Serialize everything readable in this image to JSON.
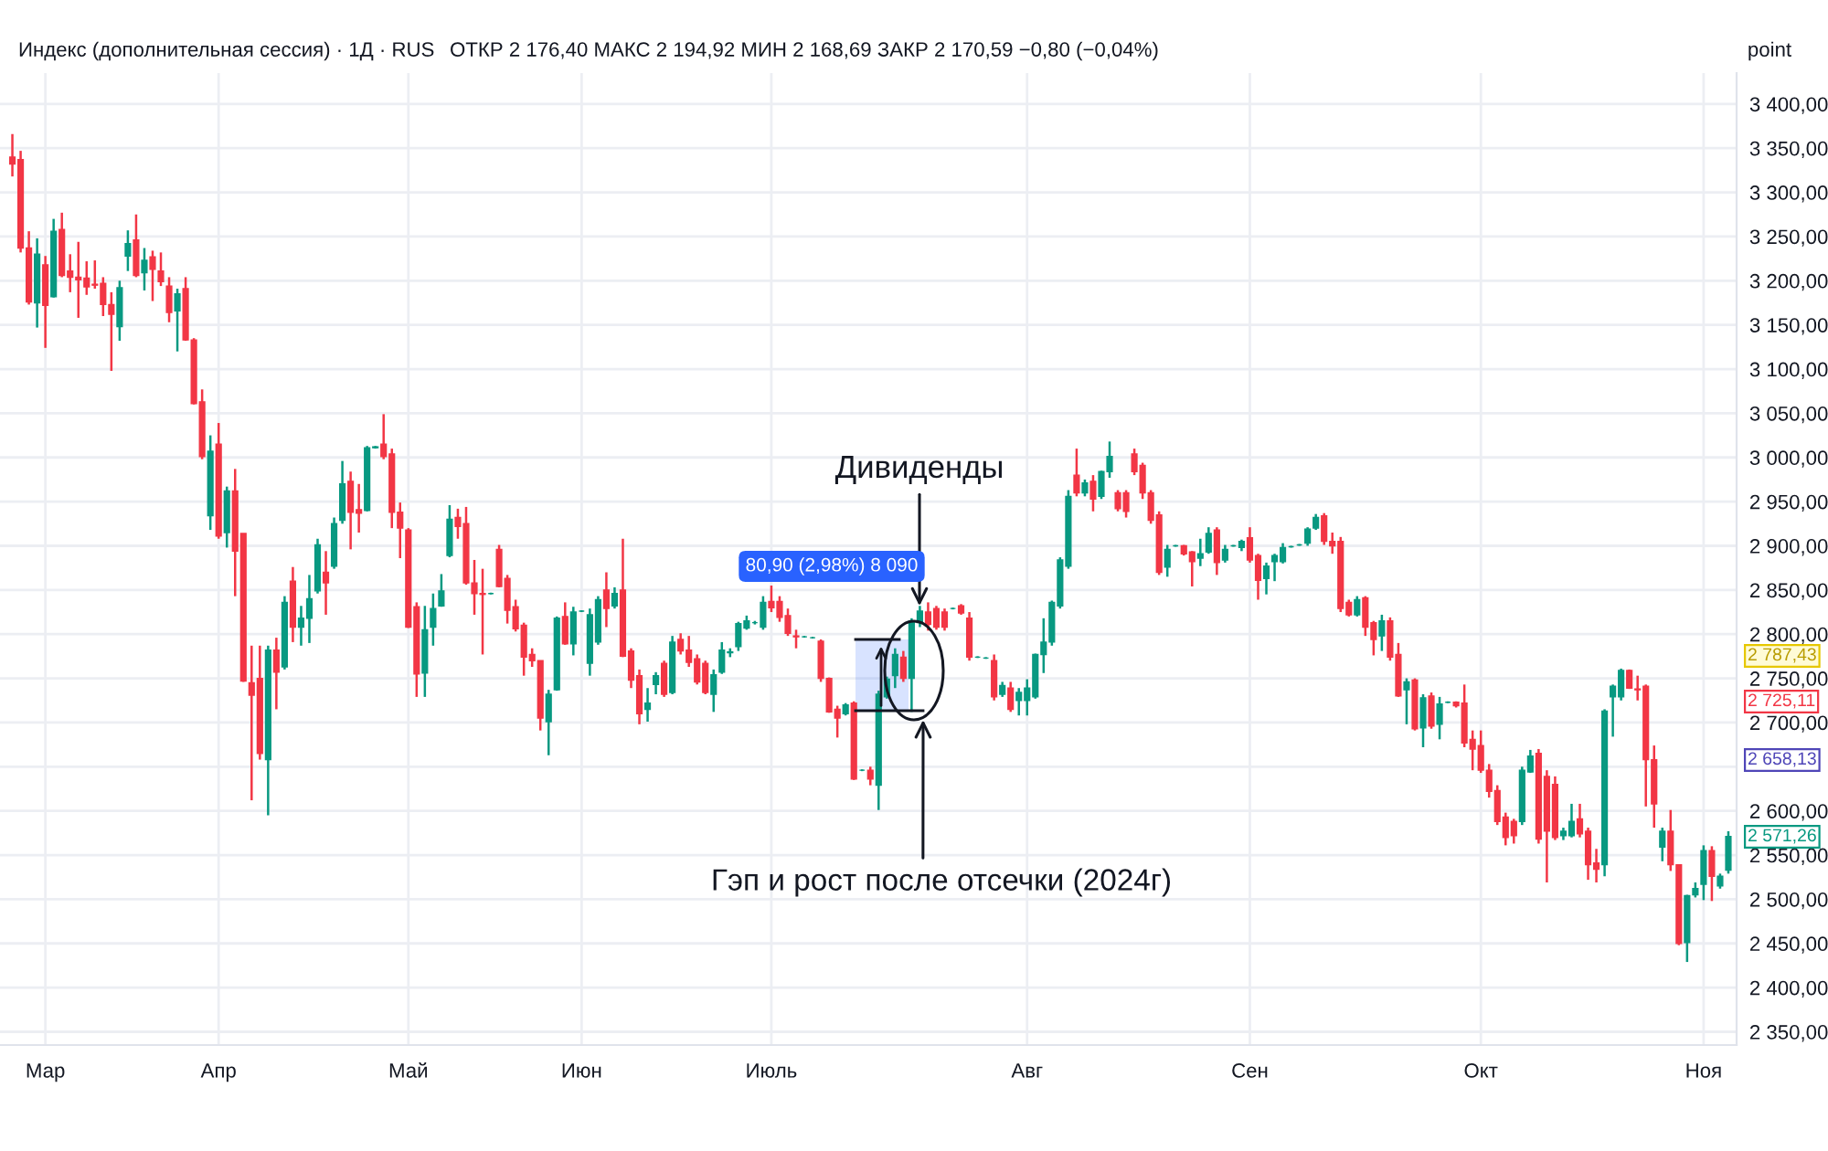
{
  "chart_data": {
    "type": "candlestick",
    "title": "Индекс (дополнительная сессия) · 1Д · RUS",
    "subtitle": "ОТКР 2 176,40 МАКС 2 194,92 МИН 2 168,69 ЗАКР 2 170,59 −0,80 (−0,04%)",
    "ylabel": "point",
    "categories": [
      null,
      null,
      null,
      null,
      "Мар",
      null,
      null,
      null,
      null,
      null,
      null,
      null,
      null,
      null,
      null,
      null,
      null,
      null,
      null,
      null,
      null,
      null,
      null,
      null,
      null,
      "Апр",
      null,
      null,
      null,
      null,
      null,
      null,
      null,
      null,
      null,
      null,
      null,
      null,
      null,
      null,
      null,
      null,
      null,
      null,
      null,
      null,
      null,
      null,
      "Май",
      null,
      null,
      null,
      null,
      null,
      null,
      null,
      null,
      null,
      null,
      null,
      null,
      null,
      null,
      null,
      null,
      null,
      null,
      null,
      null,
      "Июн",
      null,
      null,
      null,
      null,
      null,
      null,
      null,
      null,
      null,
      null,
      null,
      null,
      null,
      null,
      null,
      null,
      null,
      null,
      null,
      null,
      null,
      null,
      "Июль",
      null,
      null,
      null,
      null,
      null,
      null,
      null,
      null,
      null,
      null,
      null,
      null,
      null,
      null,
      null,
      null,
      null,
      null,
      null,
      null,
      null,
      null,
      null,
      null,
      null,
      null,
      null,
      null,
      null,
      null,
      "Авг",
      null,
      null,
      null,
      null,
      null,
      null,
      null,
      null,
      null,
      null,
      null,
      null,
      null,
      null,
      null,
      null,
      null,
      null,
      null,
      null,
      null,
      null,
      null,
      null,
      null,
      null,
      "Сен",
      null,
      null,
      null,
      null,
      null,
      null,
      null,
      null,
      null,
      null,
      null,
      null,
      null,
      null,
      null,
      null,
      null,
      null,
      null,
      null,
      null,
      null,
      null,
      null,
      null,
      null,
      null,
      "Окт",
      null,
      null,
      null,
      null,
      null,
      null,
      null,
      null,
      null,
      null,
      null,
      null,
      null,
      null,
      null,
      null,
      null,
      null,
      null,
      null,
      null,
      null,
      null,
      null,
      null,
      null,
      "Ноя",
      null,
      null,
      null
    ],
    "ohlc": [
      [
        3340,
        3366,
        3318,
        3332
      ],
      [
        3337,
        3347,
        3232,
        3237
      ],
      [
        3237,
        3256,
        3173,
        3176
      ],
      [
        3175,
        3248,
        3147,
        3230
      ],
      [
        3218,
        3228,
        3124,
        3172
      ],
      [
        3182,
        3270,
        3181,
        3256
      ],
      [
        3258,
        3277,
        3204,
        3206
      ],
      [
        3211,
        3230,
        3187,
        3204
      ],
      [
        3204,
        3244,
        3158,
        3201
      ],
      [
        3203,
        3222,
        3184,
        3193
      ],
      [
        3196,
        3223,
        3191,
        3195
      ],
      [
        3197,
        3204,
        3160,
        3173
      ],
      [
        3173,
        3187,
        3098,
        3162
      ],
      [
        3148,
        3200,
        3132,
        3192
      ],
      [
        3228,
        3257,
        3211,
        3242
      ],
      [
        3246,
        3275,
        3204,
        3206
      ],
      [
        3209,
        3237,
        3189,
        3223
      ],
      [
        3227,
        3234,
        3177,
        3213
      ],
      [
        3211,
        3232,
        3194,
        3199
      ],
      [
        3194,
        3204,
        3153,
        3164
      ],
      [
        3166,
        3191,
        3120,
        3185
      ],
      [
        3191,
        3204,
        3132,
        3133
      ],
      [
        3133,
        3135,
        3060,
        3061
      ],
      [
        3063,
        3077,
        2998,
        3001
      ],
      [
        2934,
        3025,
        2918,
        3007
      ],
      [
        3015,
        3039,
        2908,
        2911
      ],
      [
        2915,
        2967,
        2898,
        2962
      ],
      [
        2962,
        2987,
        2843,
        2894
      ],
      [
        2914,
        2914,
        2746,
        2747
      ],
      [
        2745,
        2787,
        2612,
        2731
      ],
      [
        2750,
        2787,
        2658,
        2665
      ],
      [
        2658,
        2787,
        2595,
        2782
      ],
      [
        2782,
        2796,
        2715,
        2757
      ],
      [
        2763,
        2843,
        2760,
        2836
      ],
      [
        2860,
        2876,
        2791,
        2808
      ],
      [
        2808,
        2832,
        2787,
        2818
      ],
      [
        2818,
        2867,
        2790,
        2840
      ],
      [
        2849,
        2908,
        2846,
        2901
      ],
      [
        2870,
        2894,
        2822,
        2858
      ],
      [
        2877,
        2932,
        2874,
        2925
      ],
      [
        2929,
        2996,
        2925,
        2970
      ],
      [
        2973,
        2984,
        2896,
        2938
      ],
      [
        2941,
        2970,
        2915,
        2937
      ],
      [
        2940,
        3013,
        2939,
        3011
      ],
      [
        3011,
        3013,
        3010,
        3012
      ],
      [
        3015,
        3049,
        2998,
        3001
      ],
      [
        3004,
        3010,
        2920,
        2938
      ],
      [
        2938,
        2949,
        2886,
        2920
      ],
      [
        2918,
        2920,
        2807,
        2808
      ],
      [
        2831,
        2836,
        2729,
        2755
      ],
      [
        2756,
        2832,
        2729,
        2805
      ],
      [
        2808,
        2846,
        2787,
        2829
      ],
      [
        2832,
        2868,
        2831,
        2849
      ],
      [
        2889,
        2946,
        2887,
        2930
      ],
      [
        2932,
        2942,
        2908,
        2922
      ],
      [
        2925,
        2944,
        2856,
        2858
      ],
      [
        2858,
        2884,
        2822,
        2846
      ],
      [
        2846,
        2874,
        2777,
        2845
      ],
      [
        2846,
        2847,
        2845,
        2846
      ],
      [
        2896,
        2901,
        2853,
        2854
      ],
      [
        2863,
        2867,
        2812,
        2827
      ],
      [
        2831,
        2839,
        2803,
        2806
      ],
      [
        2810,
        2813,
        2753,
        2774
      ],
      [
        2777,
        2784,
        2763,
        2770
      ],
      [
        2770,
        2770,
        2691,
        2705
      ],
      [
        2701,
        2737,
        2663,
        2732
      ],
      [
        2737,
        2820,
        2736,
        2818
      ],
      [
        2820,
        2836,
        2788,
        2789
      ],
      [
        2789,
        2831,
        2776,
        2825
      ],
      [
        2826,
        2827,
        2825,
        2826
      ],
      [
        2767,
        2829,
        2753,
        2822
      ],
      [
        2791,
        2843,
        2788,
        2839
      ],
      [
        2850,
        2870,
        2808,
        2829
      ],
      [
        2832,
        2853,
        2829,
        2846
      ],
      [
        2850,
        2908,
        2774,
        2775
      ],
      [
        2781,
        2784,
        2739,
        2748
      ],
      [
        2753,
        2760,
        2698,
        2710
      ],
      [
        2715,
        2739,
        2701,
        2722
      ],
      [
        2743,
        2757,
        2732,
        2753
      ],
      [
        2767,
        2770,
        2729,
        2732
      ],
      [
        2734,
        2798,
        2732,
        2791
      ],
      [
        2794,
        2801,
        2777,
        2781
      ],
      [
        2782,
        2798,
        2763,
        2768
      ],
      [
        2772,
        2777,
        2743,
        2746
      ],
      [
        2767,
        2770,
        2732,
        2734
      ],
      [
        2732,
        2760,
        2712,
        2754
      ],
      [
        2757,
        2791,
        2755,
        2782
      ],
      [
        2779,
        2784,
        2774,
        2780
      ],
      [
        2786,
        2814,
        2781,
        2812
      ],
      [
        2807,
        2821,
        2805,
        2815
      ],
      [
        2813,
        2815,
        2811,
        2813
      ],
      [
        2808,
        2843,
        2805,
        2836
      ],
      [
        2837,
        2855,
        2825,
        2830
      ],
      [
        2837,
        2843,
        2814,
        2819
      ],
      [
        2821,
        2829,
        2798,
        2801
      ],
      [
        2798,
        2805,
        2784,
        2797
      ],
      [
        2797,
        2798,
        2796,
        2797
      ],
      [
        2796,
        2797,
        2795,
        2796
      ],
      [
        2792,
        2794,
        2746,
        2750
      ],
      [
        2750,
        2751,
        2711,
        2712
      ],
      [
        2715,
        2719,
        2683,
        2705
      ],
      [
        2710,
        2722,
        2708,
        2720
      ],
      [
        2722,
        2724,
        2635,
        2636
      ],
      [
        2646,
        2647,
        2645,
        2646
      ],
      [
        2646,
        2650,
        2629,
        2636
      ],
      [
        2629,
        2736,
        2601,
        2732
      ],
      [
        2729,
        2752,
        2727,
        2749
      ],
      [
        2753,
        2784,
        2739,
        2777
      ],
      [
        2774,
        2781,
        2746,
        2750
      ],
      [
        2750,
        2818,
        2712,
        2815
      ],
      [
        2813,
        2832,
        2808,
        2826
      ],
      [
        2825,
        2836,
        2804,
        2811
      ],
      [
        2829,
        2832,
        2805,
        2808
      ],
      [
        2825,
        2829,
        2804,
        2808
      ],
      [
        2829,
        2830,
        2828,
        2829
      ],
      [
        2832,
        2834,
        2822,
        2824
      ],
      [
        2818,
        2825,
        2770,
        2774
      ],
      [
        2774,
        2775,
        2773,
        2774
      ],
      [
        2773,
        2774,
        2772,
        2773
      ],
      [
        2770,
        2777,
        2725,
        2729
      ],
      [
        2732,
        2746,
        2729,
        2742
      ],
      [
        2739,
        2746,
        2712,
        2715
      ],
      [
        2725,
        2739,
        2708,
        2734
      ],
      [
        2725,
        2749,
        2708,
        2739
      ],
      [
        2729,
        2778,
        2727,
        2777
      ],
      [
        2777,
        2818,
        2756,
        2791
      ],
      [
        2791,
        2838,
        2787,
        2836
      ],
      [
        2832,
        2887,
        2829,
        2884
      ],
      [
        2877,
        2963,
        2874,
        2956
      ],
      [
        2980,
        3010,
        2956,
        2960
      ],
      [
        2960,
        2975,
        2956,
        2971
      ],
      [
        2973,
        2980,
        2939,
        2953
      ],
      [
        2956,
        2985,
        2953,
        2984
      ],
      [
        2984,
        3018,
        2977,
        3001
      ],
      [
        2960,
        2963,
        2939,
        2942
      ],
      [
        2960,
        2963,
        2932,
        2939
      ],
      [
        3004,
        3010,
        2980,
        2984
      ],
      [
        2991,
        2994,
        2953,
        2960
      ],
      [
        2960,
        2963,
        2925,
        2929
      ],
      [
        2935,
        2939,
        2867,
        2870
      ],
      [
        2876,
        2901,
        2865,
        2896
      ],
      [
        2900,
        2901,
        2899,
        2900
      ],
      [
        2900,
        2901,
        2889,
        2891
      ],
      [
        2893,
        2894,
        2854,
        2882
      ],
      [
        2886,
        2908,
        2877,
        2891
      ],
      [
        2893,
        2921,
        2891,
        2914
      ],
      [
        2918,
        2921,
        2867,
        2881
      ],
      [
        2884,
        2901,
        2881,
        2896
      ],
      [
        2900,
        2901,
        2899,
        2900
      ],
      [
        2898,
        2907,
        2894,
        2905
      ],
      [
        2909,
        2921,
        2881,
        2884
      ],
      [
        2889,
        2891,
        2839,
        2861
      ],
      [
        2863,
        2881,
        2845,
        2877
      ],
      [
        2882,
        2891,
        2860,
        2889
      ],
      [
        2882,
        2903,
        2880,
        2898
      ],
      [
        2899,
        2900,
        2898,
        2899
      ],
      [
        2901,
        2902,
        2900,
        2901
      ],
      [
        2903,
        2921,
        2900,
        2919
      ],
      [
        2920,
        2936,
        2918,
        2932
      ],
      [
        2934,
        2937,
        2901,
        2905
      ],
      [
        2905,
        2915,
        2891,
        2900
      ],
      [
        2905,
        2910,
        2825,
        2829
      ],
      [
        2836,
        2839,
        2820,
        2822
      ],
      [
        2822,
        2843,
        2820,
        2839
      ],
      [
        2841,
        2843,
        2798,
        2808
      ],
      [
        2813,
        2815,
        2776,
        2794
      ],
      [
        2798,
        2822,
        2781,
        2815
      ],
      [
        2815,
        2819,
        2770,
        2774
      ],
      [
        2777,
        2790,
        2729,
        2730
      ],
      [
        2737,
        2750,
        2698,
        2746
      ],
      [
        2748,
        2750,
        2691,
        2693
      ],
      [
        2694,
        2732,
        2672,
        2728
      ],
      [
        2730,
        2734,
        2693,
        2696
      ],
      [
        2698,
        2729,
        2681,
        2721
      ],
      [
        2723,
        2724,
        2722,
        2723
      ],
      [
        2723,
        2724,
        2717,
        2719
      ],
      [
        2722,
        2743,
        2672,
        2677
      ],
      [
        2681,
        2691,
        2646,
        2670
      ],
      [
        2674,
        2691,
        2643,
        2646
      ],
      [
        2646,
        2653,
        2615,
        2622
      ],
      [
        2623,
        2629,
        2584,
        2588
      ],
      [
        2593,
        2598,
        2561,
        2570
      ],
      [
        2588,
        2591,
        2563,
        2572
      ],
      [
        2588,
        2650,
        2584,
        2646
      ],
      [
        2644,
        2669,
        2643,
        2662
      ],
      [
        2665,
        2670,
        2563,
        2568
      ],
      [
        2639,
        2646,
        2519,
        2577
      ],
      [
        2630,
        2639,
        2567,
        2570
      ],
      [
        2572,
        2581,
        2567,
        2577
      ],
      [
        2572,
        2608,
        2570,
        2588
      ],
      [
        2591,
        2608,
        2570,
        2574
      ],
      [
        2577,
        2581,
        2522,
        2539
      ],
      [
        2541,
        2557,
        2519,
        2534
      ],
      [
        2539,
        2715,
        2526,
        2713
      ],
      [
        2729,
        2743,
        2684,
        2741
      ],
      [
        2729,
        2761,
        2725,
        2759
      ],
      [
        2759,
        2760,
        2738,
        2739
      ],
      [
        2738,
        2753,
        2725,
        2737
      ],
      [
        2741,
        2743,
        2605,
        2658
      ],
      [
        2658,
        2674,
        2581,
        2608
      ],
      [
        2559,
        2581,
        2543,
        2577
      ],
      [
        2577,
        2601,
        2532,
        2539
      ],
      [
        2539,
        2539,
        2448,
        2450
      ],
      [
        2451,
        2505,
        2429,
        2504
      ],
      [
        2505,
        2519,
        2502,
        2512
      ],
      [
        2517,
        2561,
        2499,
        2555
      ],
      [
        2555,
        2560,
        2498,
        2526
      ],
      [
        2515,
        2529,
        2512,
        2526
      ],
      [
        2533,
        2577,
        2529,
        2571
      ]
    ],
    "colors": [
      "#f23645",
      "#f23645",
      "#f23645",
      "#089981",
      "#f23645",
      "#089981",
      "#f23645",
      "#f23645",
      "#f23645",
      "#f23645",
      "#f23645",
      "#f23645",
      "#f23645",
      "#089981",
      "#089981",
      "#f23645",
      "#089981",
      "#f23645",
      "#f23645",
      "#f23645",
      "#089981",
      "#f23645",
      "#f23645",
      "#f23645",
      "#089981",
      "#f23645",
      "#089981",
      "#f23645",
      "#f23645",
      "#f23645",
      "#f23645",
      "#089981",
      "#f23645",
      "#089981",
      "#f23645",
      "#089981",
      "#089981",
      "#089981",
      "#f23645",
      "#089981",
      "#089981",
      "#f23645",
      "#f23645",
      "#089981",
      "#089981",
      "#f23645",
      "#f23645",
      "#f23645",
      "#f23645",
      "#f23645",
      "#089981",
      "#089981",
      "#089981",
      "#089981",
      "#f23645",
      "#f23645",
      "#f23645",
      "#f23645",
      "#089981",
      "#f23645",
      "#f23645",
      "#f23645",
      "#f23645",
      "#f23645",
      "#f23645",
      "#089981",
      "#089981",
      "#f23645",
      "#089981",
      "#089981",
      "#089981",
      "#089981",
      "#f23645",
      "#089981",
      "#f23645",
      "#f23645",
      "#f23645",
      "#089981",
      "#089981",
      "#f23645",
      "#089981",
      "#f23645",
      "#f23645",
      "#f23645",
      "#f23645",
      "#089981",
      "#089981",
      "#089981",
      "#089981",
      "#089981",
      "#089981",
      "#089981",
      "#f23645",
      "#f23645",
      "#f23645",
      "#f23645",
      "#089981",
      "#089981",
      "#f23645",
      "#f23645",
      "#f23645",
      "#089981",
      "#f23645",
      "#089981",
      "#f23645",
      "#089981",
      "#089981",
      "#089981",
      "#f23645",
      "#089981",
      "#089981",
      "#f23645",
      "#f23645",
      "#f23645",
      "#089981",
      "#f23645",
      "#f23645",
      "#089981",
      "#089981",
      "#f23645",
      "#089981",
      "#f23645",
      "#089981",
      "#089981",
      "#089981",
      "#089981",
      "#089981",
      "#089981",
      "#089981",
      "#f23645",
      "#089981",
      "#f23645",
      "#089981",
      "#089981",
      "#f23645",
      "#f23645",
      "#f23645",
      "#f23645",
      "#f23645",
      "#f23645",
      "#089981",
      "#089981",
      "#f23645",
      "#f23645",
      "#089981",
      "#089981",
      "#f23645",
      "#089981",
      "#089981",
      "#089981",
      "#f23645",
      "#f23645",
      "#089981",
      "#089981",
      "#089981",
      "#089981",
      "#089981",
      "#089981",
      "#089981",
      "#f23645",
      "#f23645",
      "#f23645",
      "#f23645",
      "#089981",
      "#f23645",
      "#f23645",
      "#089981",
      "#f23645",
      "#f23645",
      "#089981",
      "#f23645",
      "#089981",
      "#f23645",
      "#089981",
      "#089981",
      "#f23645",
      "#f23645",
      "#f23645",
      "#f23645",
      "#f23645",
      "#f23645",
      "#f23645",
      "#f23645",
      "#089981",
      "#089981",
      "#f23645",
      "#f23645",
      "#f23645",
      "#089981",
      "#089981",
      "#f23645",
      "#f23645",
      "#f23645",
      "#089981",
      "#089981",
      "#089981",
      "#f23645",
      "#f23645",
      "#f23645",
      "#f23645",
      "#089981",
      "#f23645",
      "#f23645",
      "#089981",
      "#089981",
      "#089981",
      "#f23645",
      "#089981",
      "#089981"
    ],
    "ylim": [
      2335,
      3435
    ],
    "yticks": [
      {
        "value": 2350,
        "label": "2 350,00"
      },
      {
        "value": 2400,
        "label": "2 400,00"
      },
      {
        "value": 2450,
        "label": "2 450,00"
      },
      {
        "value": 2500,
        "label": "2 500,00"
      },
      {
        "value": 2550,
        "label": "2 550,00"
      },
      {
        "value": 2600,
        "label": "2 600,00"
      },
      {
        "value": 2650,
        "label": null
      },
      {
        "value": 2700,
        "label": "2 700,00"
      },
      {
        "value": 2750,
        "label": "2 750,00"
      },
      {
        "value": 2800,
        "label": "2 800,00"
      },
      {
        "value": 2850,
        "label": "2 850,00"
      },
      {
        "value": 2900,
        "label": "2 900,00"
      },
      {
        "value": 2950,
        "label": "2 950,00"
      },
      {
        "value": 3000,
        "label": "3 000,00"
      },
      {
        "value": 3050,
        "label": "3 050,00"
      },
      {
        "value": 3100,
        "label": "3 100,00"
      },
      {
        "value": 3150,
        "label": "3 150,00"
      },
      {
        "value": 3200,
        "label": "3 200,00"
      },
      {
        "value": 3250,
        "label": "3 250,00"
      },
      {
        "value": 3300,
        "label": "3 300,00"
      },
      {
        "value": 3350,
        "label": "3 350,00"
      },
      {
        "value": 3400,
        "label": "3 400,00"
      }
    ],
    "grid": true,
    "annotations": [
      {
        "text": "Дивиденды",
        "y": 2832
      },
      "Гэп и рост после отсечки (2024г)",
      "80,90 (2,98%) 8 090",
      "2 787,43",
      "2 725,11",
      "2 658,13",
      "2 571,26"
    ]
  }
}
